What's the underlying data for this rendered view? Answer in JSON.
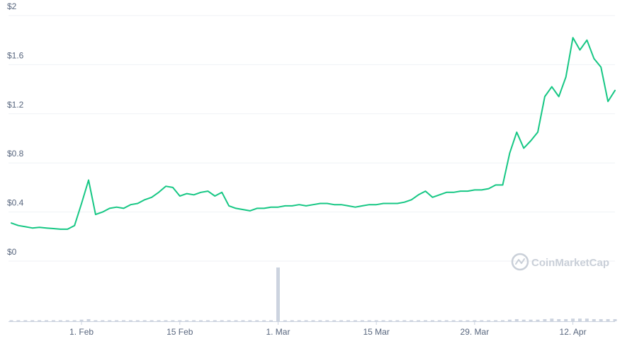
{
  "chart_data": {
    "type": "line",
    "title": "",
    "xlabel": "",
    "ylabel": "",
    "y_unit_prefix": "$",
    "ylim": [
      0,
      2
    ],
    "y_ticks": [
      "$0",
      "$0.4",
      "$0.8",
      "$1.2",
      "$1.6",
      "$2"
    ],
    "x_ticks": [
      "1. Feb",
      "15 Feb",
      "1. Mar",
      "15 Mar",
      "29. Mar",
      "12. Apr"
    ],
    "grid": true,
    "legend": "none",
    "line_color": "#16c784",
    "volume_color": "#ccd3df",
    "watermark": "CoinMarketCap",
    "series": [
      {
        "x": [
          "2021-01-22",
          "2021-01-23",
          "2021-01-24",
          "2021-01-25",
          "2021-01-26",
          "2021-01-27",
          "2021-01-28",
          "2021-01-29",
          "2021-01-30",
          "2021-01-31",
          "2021-02-01",
          "2021-02-02",
          "2021-02-03",
          "2021-02-04",
          "2021-02-05",
          "2021-02-06",
          "2021-02-07",
          "2021-02-08",
          "2021-02-09",
          "2021-02-10",
          "2021-02-11",
          "2021-02-12",
          "2021-02-13",
          "2021-02-14",
          "2021-02-15",
          "2021-02-16",
          "2021-02-17",
          "2021-02-18",
          "2021-02-19",
          "2021-02-20",
          "2021-02-21",
          "2021-02-22",
          "2021-02-23",
          "2021-02-24",
          "2021-02-25",
          "2021-02-26",
          "2021-02-27",
          "2021-02-28",
          "2021-03-01",
          "2021-03-02",
          "2021-03-03",
          "2021-03-04",
          "2021-03-05",
          "2021-03-06",
          "2021-03-07",
          "2021-03-08",
          "2021-03-09",
          "2021-03-10",
          "2021-03-11",
          "2021-03-12",
          "2021-03-13",
          "2021-03-14",
          "2021-03-15",
          "2021-03-16",
          "2021-03-17",
          "2021-03-18",
          "2021-03-19",
          "2021-03-20",
          "2021-03-21",
          "2021-03-22",
          "2021-03-23",
          "2021-03-24",
          "2021-03-25",
          "2021-03-26",
          "2021-03-27",
          "2021-03-28",
          "2021-03-29",
          "2021-03-30",
          "2021-03-31",
          "2021-04-01",
          "2021-04-02",
          "2021-04-03",
          "2021-04-04",
          "2021-04-05",
          "2021-04-06",
          "2021-04-07",
          "2021-04-08",
          "2021-04-09",
          "2021-04-10",
          "2021-04-11",
          "2021-04-12",
          "2021-04-13",
          "2021-04-14",
          "2021-04-15",
          "2021-04-16",
          "2021-04-17",
          "2021-04-18"
        ],
        "values": [
          0.31,
          0.29,
          0.28,
          0.27,
          0.275,
          0.27,
          0.265,
          0.26,
          0.26,
          0.29,
          0.47,
          0.66,
          0.38,
          0.4,
          0.43,
          0.44,
          0.43,
          0.46,
          0.47,
          0.5,
          0.52,
          0.56,
          0.61,
          0.6,
          0.53,
          0.55,
          0.54,
          0.56,
          0.57,
          0.53,
          0.56,
          0.45,
          0.43,
          0.42,
          0.41,
          0.43,
          0.43,
          0.44,
          0.44,
          0.45,
          0.45,
          0.46,
          0.45,
          0.46,
          0.47,
          0.47,
          0.46,
          0.46,
          0.45,
          0.44,
          0.45,
          0.46,
          0.46,
          0.47,
          0.47,
          0.47,
          0.48,
          0.5,
          0.54,
          0.57,
          0.52,
          0.54,
          0.56,
          0.56,
          0.57,
          0.57,
          0.58,
          0.58,
          0.59,
          0.62,
          0.62,
          0.88,
          1.05,
          0.92,
          0.98,
          1.05,
          1.34,
          1.42,
          1.34,
          1.5,
          1.82,
          1.72,
          1.8,
          1.65,
          1.58,
          1.3,
          1.39
        ]
      }
    ],
    "volume": [
      0.01,
      0.01,
      0.01,
      0.01,
      0.01,
      0.01,
      0.01,
      0.01,
      0.01,
      0.02,
      0.03,
      0.04,
      0.02,
      0.01,
      0.01,
      0.01,
      0.01,
      0.01,
      0.01,
      0.01,
      0.01,
      0.02,
      0.02,
      0.02,
      0.01,
      0.01,
      0.01,
      0.01,
      0.01,
      0.01,
      0.01,
      0.01,
      0.01,
      0.01,
      0.01,
      0.01,
      0.01,
      0.01,
      1.0,
      0.01,
      0.01,
      0.01,
      0.01,
      0.01,
      0.01,
      0.01,
      0.01,
      0.01,
      0.01,
      0.01,
      0.01,
      0.01,
      0.01,
      0.01,
      0.01,
      0.01,
      0.01,
      0.01,
      0.02,
      0.02,
      0.01,
      0.01,
      0.01,
      0.01,
      0.01,
      0.01,
      0.01,
      0.01,
      0.01,
      0.02,
      0.02,
      0.03,
      0.04,
      0.03,
      0.03,
      0.03,
      0.04,
      0.05,
      0.04,
      0.04,
      0.05,
      0.05,
      0.05,
      0.04,
      0.04,
      0.04,
      0.04
    ]
  }
}
